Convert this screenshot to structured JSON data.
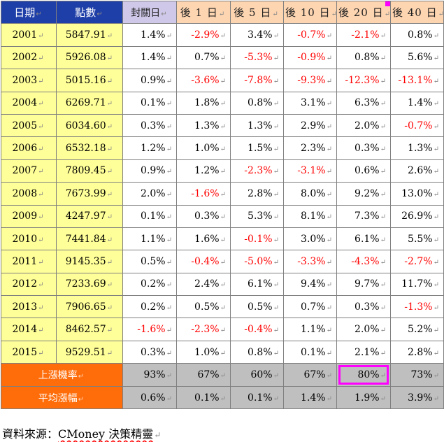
{
  "headers": [
    "日期",
    "點數",
    "封關日",
    "後 1 日",
    "後 5 日",
    "後 10 日",
    "後 20 日",
    "後 40 日"
  ],
  "rows": [
    {
      "year": "2001",
      "points": "5847.91",
      "values": [
        "1.4%",
        "-2.9%",
        "3.4%",
        "-0.7%",
        "-2.1%",
        "0.8%"
      ]
    },
    {
      "year": "2002",
      "points": "5926.08",
      "values": [
        "1.4%",
        "0.7%",
        "-5.3%",
        "-0.9%",
        "0.8%",
        "5.6%"
      ]
    },
    {
      "year": "2003",
      "points": "5015.16",
      "values": [
        "0.9%",
        "-3.6%",
        "-7.8%",
        "-9.3%",
        "-12.3%",
        "-13.1%"
      ]
    },
    {
      "year": "2004",
      "points": "6269.71",
      "values": [
        "0.1%",
        "1.8%",
        "0.8%",
        "3.1%",
        "6.3%",
        "1.4%"
      ]
    },
    {
      "year": "2005",
      "points": "6034.60",
      "values": [
        "0.3%",
        "1.3%",
        "1.3%",
        "2.9%",
        "2.0%",
        "-0.7%"
      ]
    },
    {
      "year": "2006",
      "points": "6532.18",
      "values": [
        "1.2%",
        "1.0%",
        "1.5%",
        "2.3%",
        "0.3%",
        "1.3%"
      ]
    },
    {
      "year": "2007",
      "points": "7809.45",
      "values": [
        "0.9%",
        "1.2%",
        "-2.3%",
        "-3.1%",
        "0.6%",
        "2.6%"
      ]
    },
    {
      "year": "2008",
      "points": "7673.99",
      "values": [
        "2.0%",
        "-1.6%",
        "2.8%",
        "8.0%",
        "9.2%",
        "13.0%"
      ]
    },
    {
      "year": "2009",
      "points": "4247.97",
      "values": [
        "0.1%",
        "0.3%",
        "5.3%",
        "8.1%",
        "7.3%",
        "26.9%"
      ]
    },
    {
      "year": "2010",
      "points": "7441.84",
      "values": [
        "1.1%",
        "1.6%",
        "-0.1%",
        "3.0%",
        "6.1%",
        "5.5%"
      ]
    },
    {
      "year": "2011",
      "points": "9145.35",
      "values": [
        "0.5%",
        "-0.4%",
        "-5.0%",
        "-3.3%",
        "-4.3%",
        "-2.7%"
      ]
    },
    {
      "year": "2012",
      "points": "7233.69",
      "values": [
        "0.2%",
        "2.4%",
        "6.1%",
        "9.4%",
        "9.7%",
        "11.7%"
      ]
    },
    {
      "year": "2013",
      "points": "7906.65",
      "values": [
        "0.2%",
        "0.5%",
        "0.5%",
        "0.7%",
        "0.3%",
        "-1.3%"
      ]
    },
    {
      "year": "2014",
      "points": "8462.57",
      "values": [
        "-1.6%",
        "-2.3%",
        "-0.4%",
        "1.1%",
        "2.0%",
        "5.2%"
      ]
    },
    {
      "year": "2015",
      "points": "9529.51",
      "values": [
        "0.3%",
        "1.0%",
        "0.8%",
        "0.1%",
        "2.1%",
        "2.8%"
      ]
    }
  ],
  "summary": [
    {
      "label": "上漲機率",
      "values": [
        "93%",
        "67%",
        "60%",
        "67%",
        "80%",
        "73%"
      ]
    },
    {
      "label": "平均漲幅",
      "values": [
        "0.6%",
        "0.1%",
        "0.1%",
        "1.4%",
        "1.9%",
        "3.9%"
      ]
    }
  ],
  "source": {
    "prefix": "資料來源：",
    "brand": "CMoney 決策精靈"
  },
  "colors": {
    "header_blue": "#1f3fa8",
    "header_lavender": "#cfc8e8",
    "header_peach": "#fdd5b1",
    "year_yellow": "#ffff99",
    "summary_orange": "#ff6d0a",
    "summary_gray": "#bfbfbf",
    "negative_red": "#ff0000",
    "highlight_magenta": "#ff00ff"
  }
}
